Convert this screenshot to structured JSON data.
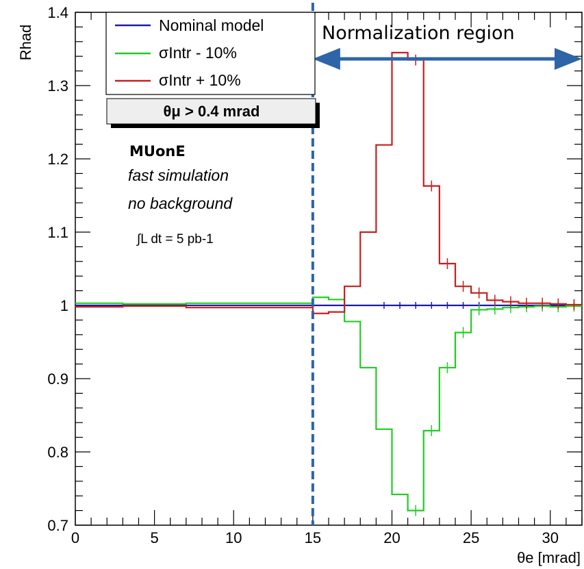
{
  "chart_data": {
    "type": "line",
    "style": "step-histogram",
    "xlabel": "θe [mrad]",
    "ylabel": "Rhad",
    "xlim": [
      0,
      32
    ],
    "ylim": [
      0.7,
      1.4
    ],
    "x_ticks": [
      "0",
      "5",
      "10",
      "15",
      "20",
      "25",
      "30"
    ],
    "y_ticks": [
      "0.7",
      "0.8",
      "0.9",
      "1",
      "1.1",
      "1.2",
      "1.3",
      "1.4"
    ],
    "bin_edges": [
      0,
      3,
      7,
      15,
      16,
      17,
      18,
      19,
      20,
      21,
      22,
      23,
      24,
      25,
      26,
      27,
      28,
      29,
      30,
      31,
      32
    ],
    "series": [
      {
        "name": "Nominal model",
        "color": "#1a1aa8",
        "values": [
          1.0,
          1.0,
          1.0,
          1.0,
          1.0,
          1.0,
          1.0,
          1.0,
          1.0,
          1.0,
          1.0,
          1.0,
          1.0,
          1.0,
          1.0,
          1.0,
          1.0,
          1.0,
          1.0,
          1.0
        ]
      },
      {
        "name": "σIntr - 10%",
        "color": "#22cc22",
        "values": [
          1.003,
          1.002,
          1.003,
          1.011,
          1.008,
          0.978,
          0.915,
          0.831,
          0.742,
          0.72,
          0.829,
          0.915,
          0.963,
          0.994,
          0.995,
          0.997,
          0.998,
          0.999,
          0.998,
          0.999
        ]
      },
      {
        "name": "σIntr + 10%",
        "color": "#c81e1e",
        "values": [
          0.998,
          0.999,
          0.997,
          0.989,
          0.991,
          1.026,
          1.1,
          1.219,
          1.345,
          1.335,
          1.163,
          1.057,
          1.026,
          1.017,
          1.007,
          1.005,
          1.003,
          1.003,
          1.002,
          1.001
        ]
      }
    ],
    "legend": {
      "placement": "top-left",
      "entries": [
        "Nominal model",
        "σIntr - 10%",
        "σIntr + 10%"
      ]
    },
    "cut_label": "θμ > 0.4 mrad",
    "annotations": {
      "experiment": "MUonE",
      "line1": "fast simulation",
      "line2": "no background",
      "lumi": "∫L dt = 5 pb-1"
    },
    "normalization_region": {
      "label": "Normalization region",
      "x_start": 15,
      "arrow_color": "#2e64a8"
    }
  }
}
